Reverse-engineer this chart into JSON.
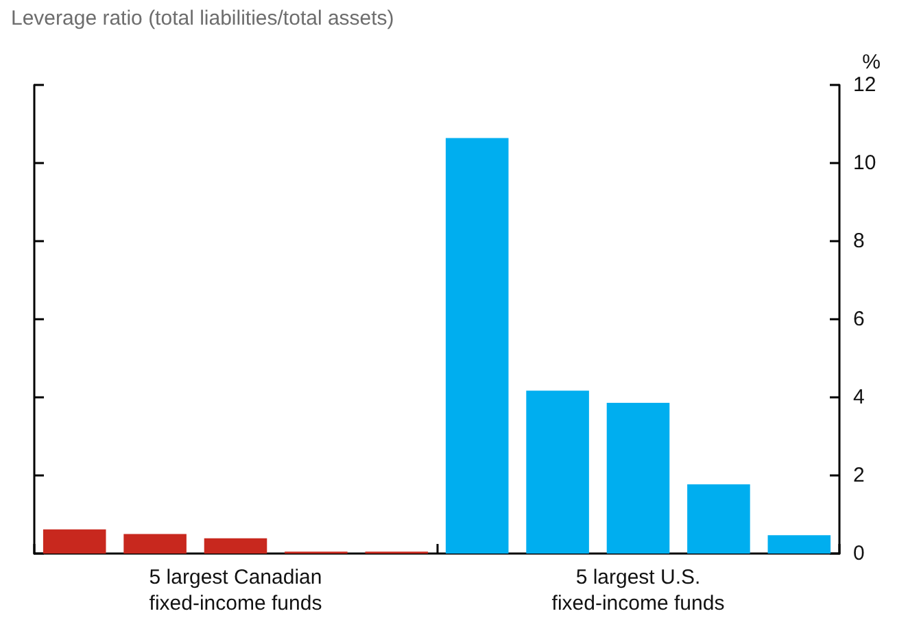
{
  "chart_data": {
    "type": "bar",
    "title": "Leverage ratio (total liabilities/total assets)",
    "ylabel": "%",
    "categories": [
      null,
      null,
      null,
      null,
      null,
      null,
      null,
      null,
      null,
      null
    ],
    "values": [
      0.62,
      0.5,
      0.39,
      0.05,
      0.05,
      10.64,
      4.17,
      3.86,
      1.77,
      0.47
    ],
    "colors": [
      "#c8281e",
      "#c8281e",
      "#c8281e",
      "#c8281e",
      "#c8281e",
      "#00aeef",
      "#00aeef",
      "#00aeef",
      "#00aeef",
      "#00aeef"
    ],
    "ylim": [
      0,
      12
    ],
    "yticks": [
      0,
      2,
      4,
      6,
      8,
      10,
      12
    ],
    "tick_labels": "y",
    "annotations": [
      "5 largest Canadian\nfixed-income funds",
      "5 largest U.S.\nfixed-income funds"
    ]
  }
}
